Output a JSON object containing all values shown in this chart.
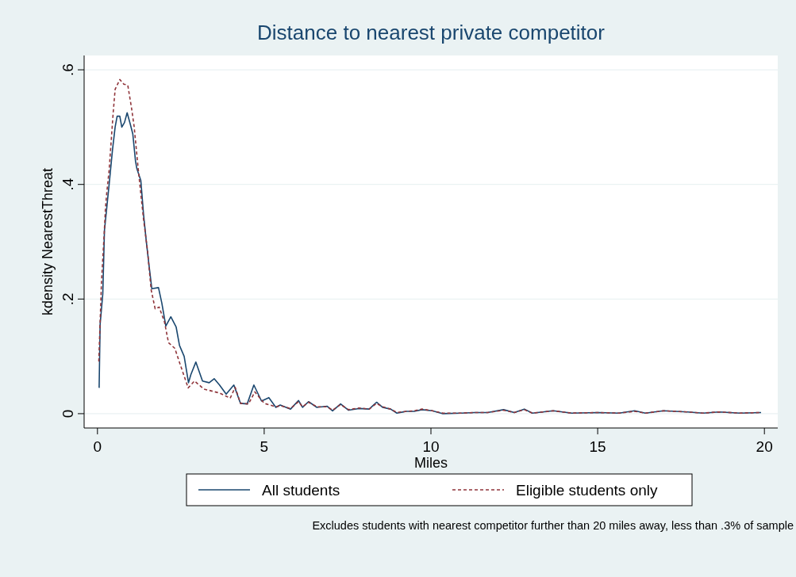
{
  "chart_data": {
    "type": "line",
    "title": "Distance to nearest private competitor",
    "xlabel": "Miles",
    "ylabel": "kdensity NearestThreat",
    "xlim": [
      -0.4,
      20.4
    ],
    "ylim": [
      -0.025,
      0.625
    ],
    "xticks": [
      0,
      5,
      10,
      15,
      20
    ],
    "yticks": [
      0,
      {
        "value": 0.2,
        "label": ".2"
      },
      {
        "value": 0.4,
        "label": ".4"
      },
      {
        "value": 0.6,
        "label": ".6"
      }
    ],
    "grid": "y",
    "legend": "bottom",
    "annotations": [
      "Excludes students with nearest competitor further than 20 miles away, less than .3% of sample"
    ],
    "series": [
      {
        "name": "All students",
        "color": "#1a476f",
        "line_style": "solid",
        "x": [
          0.05,
          0.08,
          0.16,
          0.21,
          0.28,
          0.35,
          0.45,
          0.53,
          0.59,
          0.67,
          0.73,
          0.81,
          0.89,
          0.98,
          1.06,
          1.14,
          1.18,
          1.3,
          1.38,
          1.46,
          1.55,
          1.63,
          1.83,
          1.93,
          2.05,
          2.2,
          2.36,
          2.46,
          2.6,
          2.73,
          2.8,
          2.95,
          3.15,
          3.35,
          3.5,
          3.66,
          3.86,
          4.09,
          4.29,
          4.49,
          4.69,
          4.92,
          5.14,
          5.35,
          5.48,
          5.79,
          6.03,
          6.15,
          6.33,
          6.58,
          6.89,
          7.05,
          7.29,
          7.53,
          7.84,
          8.15,
          8.37,
          8.55,
          8.79,
          8.98,
          9.26,
          9.5,
          9.73,
          10.04,
          10.36,
          10.91,
          11.31,
          11.7,
          12.18,
          12.5,
          12.8,
          13.04,
          13.67,
          14.22,
          15.01,
          15.64,
          16.11,
          16.43,
          16.98,
          17.69,
          18.16,
          18.64,
          19.27,
          19.9
        ],
        "values": [
          0.045,
          0.156,
          0.209,
          0.32,
          0.36,
          0.4,
          0.46,
          0.5,
          0.519,
          0.519,
          0.5,
          0.508,
          0.525,
          0.506,
          0.488,
          0.441,
          0.428,
          0.407,
          0.349,
          0.303,
          0.257,
          0.218,
          0.22,
          0.193,
          0.153,
          0.169,
          0.151,
          0.119,
          0.1,
          0.054,
          0.068,
          0.09,
          0.057,
          0.054,
          0.061,
          0.05,
          0.034,
          0.05,
          0.018,
          0.017,
          0.05,
          0.022,
          0.028,
          0.011,
          0.015,
          0.008,
          0.023,
          0.011,
          0.021,
          0.011,
          0.013,
          0.005,
          0.017,
          0.006,
          0.009,
          0.008,
          0.02,
          0.011,
          0.008,
          0.001,
          0.004,
          0.004,
          0.007,
          0.005,
          0,
          0.001,
          0.002,
          0.002,
          0.007,
          0.002,
          0.008,
          0.001,
          0.005,
          0.001,
          0.002,
          0.001,
          0.005,
          0.001,
          0.005,
          0.003,
          0.001,
          0.003,
          0.001,
          0.002
        ]
      },
      {
        "name": "Eligible students only",
        "color": "#90353b",
        "line_style": "dashed",
        "x": [
          0.04,
          0.12,
          0.2,
          0.24,
          0.28,
          0.35,
          0.47,
          0.53,
          0.67,
          0.79,
          0.91,
          1.02,
          1.1,
          1.22,
          1.38,
          1.5,
          1.61,
          1.73,
          1.85,
          2.01,
          2.13,
          2.32,
          2.48,
          2.72,
          2.91,
          3.19,
          3.66,
          3.98,
          4.13,
          4.29,
          4.53,
          4.72,
          5.0,
          5.35,
          5.48,
          5.79,
          6.03,
          6.15,
          6.33,
          6.58,
          6.89,
          7.05,
          7.29,
          7.53,
          7.84,
          8.15,
          8.37,
          8.55,
          8.79,
          8.98,
          9.26,
          9.5,
          9.73,
          10.04,
          10.36,
          10.91,
          11.31,
          11.7,
          12.18,
          12.5,
          12.8,
          13.04,
          13.67,
          14.22,
          15.01,
          15.64,
          16.11,
          16.43,
          16.98,
          17.69,
          18.16,
          18.64,
          19.27,
          19.9
        ],
        "values": [
          0.091,
          0.229,
          0.312,
          0.359,
          0.386,
          0.425,
          0.524,
          0.566,
          0.583,
          0.575,
          0.573,
          0.534,
          0.501,
          0.428,
          0.34,
          0.285,
          0.216,
          0.183,
          0.186,
          0.16,
          0.124,
          0.114,
          0.086,
          0.045,
          0.057,
          0.043,
          0.036,
          0.027,
          0.046,
          0.018,
          0.017,
          0.038,
          0.018,
          0.012,
          0.014,
          0.009,
          0.021,
          0.012,
          0.02,
          0.012,
          0.012,
          0.006,
          0.016,
          0.007,
          0.01,
          0.008,
          0.018,
          0.012,
          0.008,
          0.002,
          0.004,
          0.005,
          0.008,
          0.005,
          0.001,
          0.001,
          0.002,
          0.002,
          0.006,
          0.002,
          0.007,
          0.001,
          0.005,
          0.001,
          0.002,
          0.001,
          0.004,
          0.001,
          0.005,
          0.003,
          0.001,
          0.003,
          0.001,
          0.002
        ]
      }
    ]
  }
}
